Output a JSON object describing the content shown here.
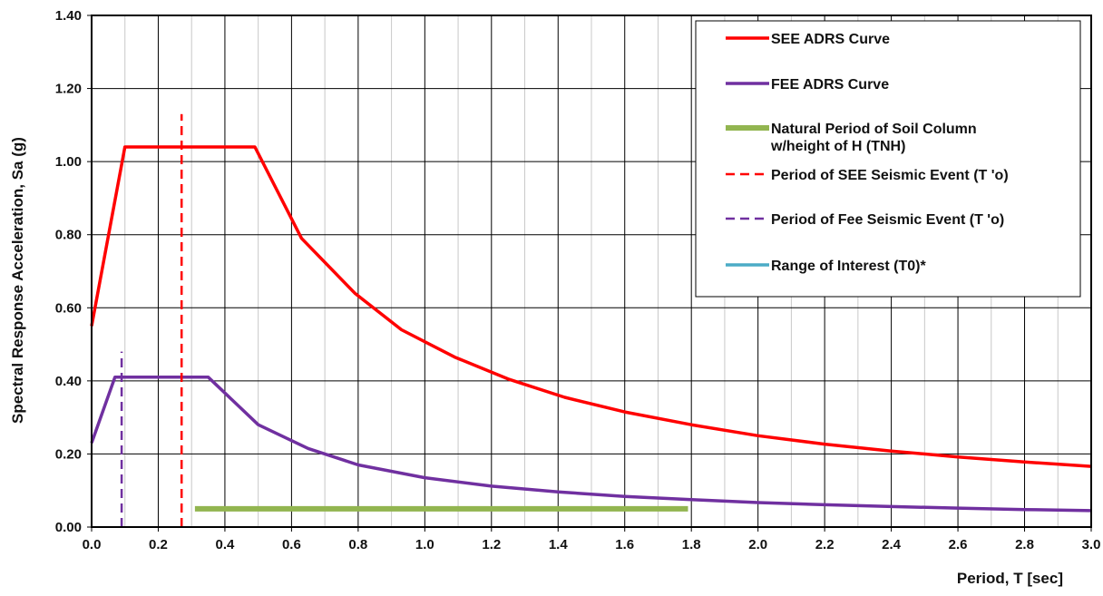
{
  "chart_data": {
    "type": "line",
    "title": "",
    "xlabel": "Period, T [sec]",
    "ylabel": "Spectral Response Acceleration, Sa (g)",
    "xlim": [
      0.0,
      3.0
    ],
    "ylim": [
      0.0,
      1.4
    ],
    "x_ticks": [
      "0.0",
      "0.2",
      "0.4",
      "0.6",
      "0.8",
      "1.0",
      "1.2",
      "1.4",
      "1.6",
      "1.8",
      "2.0",
      "2.2",
      "2.4",
      "2.6",
      "2.8",
      "3.0"
    ],
    "y_ticks": [
      "0.00",
      "0.20",
      "0.40",
      "0.60",
      "0.80",
      "1.00",
      "1.20",
      "1.40"
    ],
    "grid": true,
    "legend_position": "top-right",
    "series": [
      {
        "name": "SEE ADRS Curve",
        "color": "#ff0000",
        "style": "solid",
        "x": [
          0.0,
          0.1,
          0.49,
          0.63,
          0.79,
          0.93,
          1.09,
          1.25,
          1.42,
          1.6,
          1.8,
          2.0,
          2.2,
          2.4,
          2.6,
          2.8,
          3.0
        ],
        "y": [
          0.55,
          1.04,
          1.04,
          0.79,
          0.64,
          0.54,
          0.465,
          0.405,
          0.355,
          0.315,
          0.28,
          0.25,
          0.227,
          0.208,
          0.192,
          0.178,
          0.166
        ]
      },
      {
        "name": "FEE ADRS Curve",
        "color": "#7030a0",
        "style": "solid",
        "x": [
          0.0,
          0.07,
          0.35,
          0.5,
          0.65,
          0.8,
          1.0,
          1.2,
          1.4,
          1.6,
          1.8,
          2.0,
          2.2,
          2.4,
          2.6,
          2.8,
          3.0
        ],
        "y": [
          0.23,
          0.41,
          0.41,
          0.28,
          0.215,
          0.17,
          0.135,
          0.112,
          0.096,
          0.084,
          0.075,
          0.067,
          0.061,
          0.056,
          0.052,
          0.048,
          0.045
        ]
      },
      {
        "name": "Natural Period of Soil Column w/height of H (TNH)",
        "name_lines": [
          "Natural Period of Soil Column",
          "w/height of H (TNH)"
        ],
        "color": "#92b550",
        "style": "solid-thick",
        "x": [
          0.31,
          1.79
        ],
        "y": [
          0.05,
          0.05
        ]
      },
      {
        "name": "Period of SEE Seismic Event (T 'o)",
        "color": "#ff0000",
        "style": "dashed",
        "x": [
          0.27,
          0.27
        ],
        "y": [
          0.0,
          1.13
        ]
      },
      {
        "name": "Period of Fee Seismic Event (T 'o)",
        "color": "#7030a0",
        "style": "dashed",
        "x": [
          0.09,
          0.09
        ],
        "y": [
          0.0,
          0.48
        ]
      },
      {
        "name": "Range of Interest (T0)*",
        "color": "#4bacc6",
        "style": "solid",
        "x": [],
        "y": []
      }
    ]
  }
}
